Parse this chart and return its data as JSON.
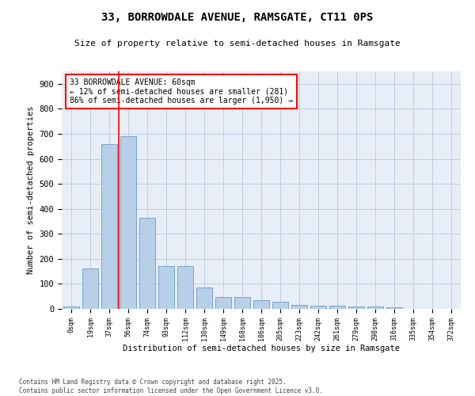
{
  "title": "33, BORROWDALE AVENUE, RAMSGATE, CT11 0PS",
  "subtitle": "Size of property relative to semi-detached houses in Ramsgate",
  "xlabel": "Distribution of semi-detached houses by size in Ramsgate",
  "ylabel": "Number of semi-detached properties",
  "categories": [
    "0sqm",
    "19sqm",
    "37sqm",
    "56sqm",
    "74sqm",
    "93sqm",
    "112sqm",
    "130sqm",
    "149sqm",
    "168sqm",
    "186sqm",
    "205sqm",
    "223sqm",
    "242sqm",
    "261sqm",
    "279sqm",
    "298sqm",
    "316sqm",
    "335sqm",
    "354sqm",
    "372sqm"
  ],
  "values": [
    8,
    160,
    660,
    690,
    365,
    170,
    170,
    85,
    47,
    47,
    35,
    30,
    15,
    13,
    13,
    10,
    10,
    5,
    0,
    0,
    0
  ],
  "bar_color": "#b8cfe8",
  "bar_edge_color": "#6699cc",
  "vline_color": "red",
  "annotation_text": "33 BORROWDALE AVENUE: 60sqm\n← 12% of semi-detached houses are smaller (281)\n86% of semi-detached houses are larger (1,950) →",
  "annotation_box_color": "white",
  "annotation_box_edge": "red",
  "background_color": "#e8eef8",
  "grid_color": "#c0cce0",
  "footer_text": "Contains HM Land Registry data © Crown copyright and database right 2025.\nContains public sector information licensed under the Open Government Licence v3.0.",
  "ylim": [
    0,
    950
  ],
  "yticks": [
    0,
    100,
    200,
    300,
    400,
    500,
    600,
    700,
    800,
    900
  ]
}
